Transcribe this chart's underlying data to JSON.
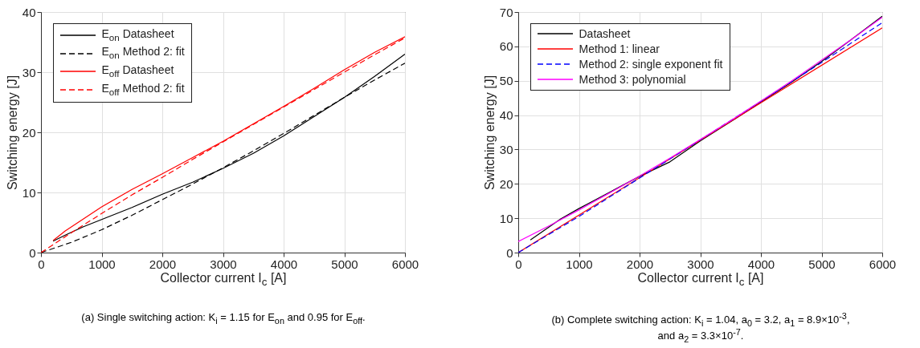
{
  "chart_data": [
    {
      "type": "line",
      "xlabel": "Collector current I$_{c}$ [A]",
      "ylabel": "Switching energy [J]",
      "xlim": [
        0,
        6000
      ],
      "xticks": [
        0,
        1000,
        2000,
        3000,
        4000,
        5000,
        6000
      ],
      "ylim": [
        0,
        40
      ],
      "yticks": [
        0,
        10,
        20,
        30,
        40
      ],
      "grid": true,
      "legend": "top left",
      "annotations": [
        "(a) Single switching action: K$_{i}$ = 1.15 for E$_{on}$ and 0.95 for E$_{off}$."
      ],
      "series": [
        {
          "name": "E$_{on}$ Datasheet",
          "color": "#000000",
          "line_style": "solid",
          "x": [
            200,
            400,
            700,
            1000,
            1500,
            2000,
            2500,
            3000,
            3500,
            4000,
            4500,
            5000,
            5500,
            6000
          ],
          "values": [
            1.9,
            2.9,
            4.3,
            5.5,
            7.5,
            9.7,
            11.7,
            14.0,
            16.5,
            19.4,
            22.6,
            25.8,
            29.3,
            33.0
          ]
        },
        {
          "name": "E$_{on}$ Method 2: fit",
          "color": "#000000",
          "line_style": "dashed",
          "x": [
            0,
            500,
            1000,
            1500,
            2000,
            2500,
            3000,
            3500,
            4000,
            4500,
            5000,
            5500,
            6000
          ],
          "values": [
            0,
            1.7,
            3.8,
            6.2,
            8.8,
            11.4,
            14.1,
            16.9,
            19.8,
            22.8,
            25.8,
            28.7,
            31.5
          ]
        },
        {
          "name": "E$_{off}$ Datasheet",
          "color": "#ff0000",
          "line_style": "solid",
          "x": [
            200,
            400,
            700,
            1000,
            1500,
            2000,
            2500,
            3000,
            3500,
            4000,
            4500,
            5000,
            5500,
            6000
          ],
          "values": [
            2.0,
            3.6,
            5.6,
            7.6,
            10.5,
            13.1,
            15.8,
            18.5,
            21.4,
            24.3,
            27.3,
            30.4,
            33.3,
            35.9
          ]
        },
        {
          "name": "E$_{off}$ Method 2: fit",
          "color": "#ff0000",
          "line_style": "dashed",
          "x": [
            0,
            500,
            1000,
            1500,
            2000,
            2500,
            3000,
            3500,
            4000,
            4500,
            5000,
            5500,
            6000
          ],
          "values": [
            0,
            3.3,
            6.5,
            9.6,
            12.5,
            15.5,
            18.4,
            21.3,
            24.2,
            27.1,
            30.0,
            32.9,
            35.7
          ]
        }
      ]
    },
    {
      "type": "line",
      "xlabel": "Collector current I$_{c}$ [A]",
      "ylabel": "Switching energy [J]",
      "xlim": [
        0,
        6000
      ],
      "xticks": [
        0,
        1000,
        2000,
        3000,
        4000,
        5000,
        6000
      ],
      "ylim": [
        0,
        70
      ],
      "yticks": [
        0,
        10,
        20,
        30,
        40,
        50,
        60,
        70
      ],
      "grid": true,
      "legend": "top left",
      "annotations": [
        "(b) Complete switching action: K$_{i}$ = 1.04, a$_{0}$ = 3.2, a$_{1}$ = 8.9×10$^{-3}$, and a$_{2}$ = 3.3×10$^{-7}$."
      ],
      "series": [
        {
          "name": "Datasheet",
          "color": "#000000",
          "line_style": "solid",
          "x": [
            200,
            700,
            1000,
            1500,
            2000,
            2500,
            3000,
            3600,
            4000,
            4500,
            5000,
            5500,
            6000
          ],
          "values": [
            3.7,
            9.8,
            12.8,
            17.5,
            22.2,
            26.4,
            32.5,
            39.2,
            43.8,
            49.5,
            55.6,
            62.1,
            68.8
          ]
        },
        {
          "name": "Method 1: linear",
          "color": "#ff0000",
          "line_style": "solid",
          "x": [
            0,
            6000
          ],
          "values": [
            0,
            65.4
          ]
        },
        {
          "name": "Method 2: single exponent fit",
          "color": "#0000ff",
          "line_style": "dashed",
          "x": [
            0,
            1000,
            2000,
            3000,
            4000,
            5000,
            6000
          ],
          "values": [
            0,
            10.5,
            21.7,
            32.8,
            44.0,
            55.3,
            66.9
          ]
        },
        {
          "name": "Method 3: polynomial",
          "color": "#ff00ff",
          "line_style": "solid",
          "x": [
            0,
            500,
            1000,
            1500,
            2000,
            2500,
            3000,
            3500,
            4000,
            4500,
            5000,
            5500,
            6000
          ],
          "values": [
            3.2,
            7.7,
            12.4,
            17.3,
            22.3,
            27.5,
            32.9,
            38.4,
            44.1,
            49.9,
            56.0,
            62.1,
            68.5
          ]
        }
      ]
    }
  ]
}
